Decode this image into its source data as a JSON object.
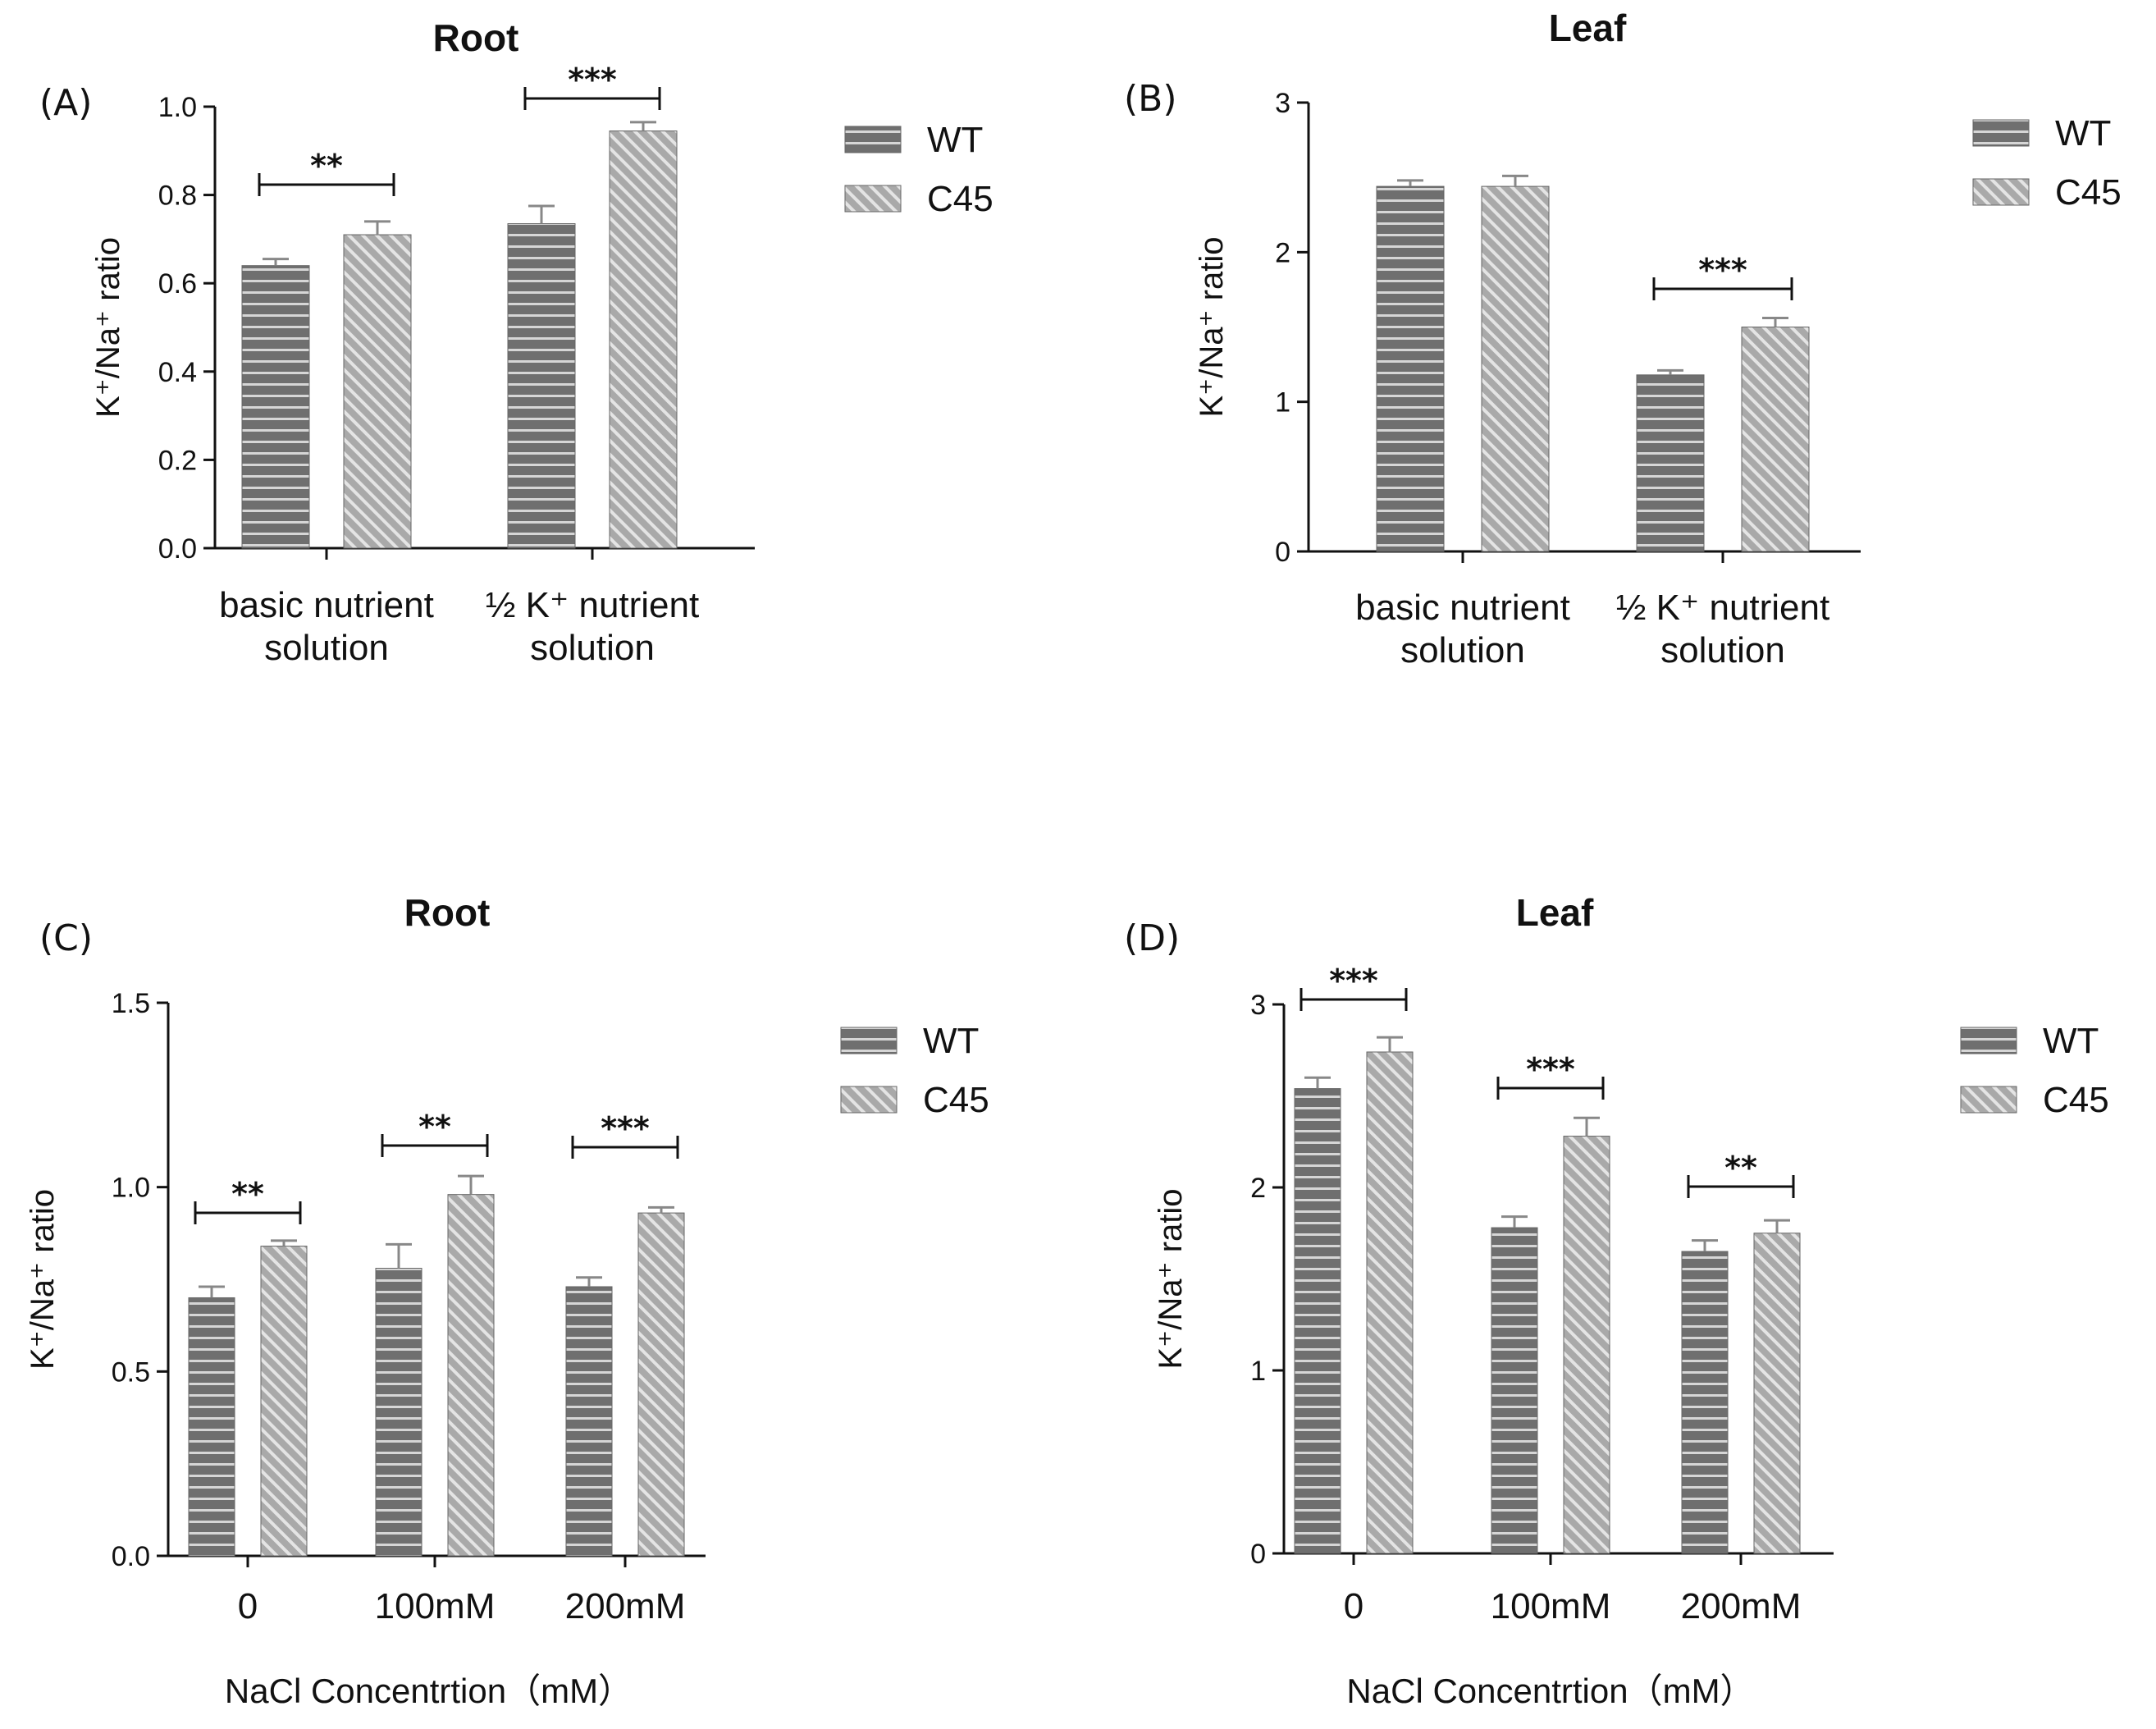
{
  "chart_data": [
    {
      "panel": "(A)",
      "type": "bar",
      "title": "Root",
      "ylabel": "K⁺/Na⁺ ratio",
      "xlabel": "",
      "ylim": [
        0,
        1.0
      ],
      "yticks": [
        "0.0",
        "0.2",
        "0.4",
        "0.6",
        "0.8",
        "1.0"
      ],
      "categories": [
        [
          "basic nutrient",
          "solution"
        ],
        [
          "½ K⁺ nutrient",
          "solution"
        ]
      ],
      "series": [
        {
          "name": "WT",
          "values": [
            0.64,
            0.735
          ],
          "errors": [
            0.015,
            0.04
          ]
        },
        {
          "name": "C45",
          "values": [
            0.71,
            0.945
          ],
          "errors": [
            0.03,
            0.02
          ]
        }
      ],
      "significance": [
        "**",
        "***"
      ],
      "legend": "top-right"
    },
    {
      "panel": "(B)",
      "type": "bar",
      "title": "Leaf",
      "ylabel": "K⁺/Na⁺ ratio",
      "xlabel": "",
      "ylim": [
        0,
        3
      ],
      "yticks": [
        "0",
        "1",
        "2",
        "3"
      ],
      "categories": [
        [
          "basic nutrient",
          "solution"
        ],
        [
          "½ K⁺ nutrient",
          "solution"
        ]
      ],
      "series": [
        {
          "name": "WT",
          "values": [
            2.44,
            1.18
          ],
          "errors": [
            0.04,
            0.03
          ]
        },
        {
          "name": "C45",
          "values": [
            2.44,
            1.5
          ],
          "errors": [
            0.07,
            0.06
          ]
        }
      ],
      "significance": [
        "",
        "***"
      ],
      "legend": "top-right"
    },
    {
      "panel": "(C)",
      "type": "bar",
      "title": "Root",
      "ylabel": "K⁺/Na⁺ ratio",
      "xlabel": "NaCl Concentrtion（mM）",
      "ylim": [
        0,
        1.5
      ],
      "yticks": [
        "0.0",
        "0.5",
        "1.0",
        "1.5"
      ],
      "categories": [
        [
          "0"
        ],
        [
          "100mM"
        ],
        [
          "200mM"
        ]
      ],
      "series": [
        {
          "name": "WT",
          "values": [
            0.7,
            0.78,
            0.73
          ],
          "errors": [
            0.03,
            0.065,
            0.025
          ]
        },
        {
          "name": "C45",
          "values": [
            0.84,
            0.98,
            0.93
          ],
          "errors": [
            0.015,
            0.05,
            0.015
          ]
        }
      ],
      "significance": [
        "**",
        "**",
        "***"
      ],
      "legend": "top-right"
    },
    {
      "panel": "(D)",
      "type": "bar",
      "title": "Leaf",
      "ylabel": "K⁺/Na⁺ ratio",
      "xlabel": "NaCl Concentrtion（mM）",
      "ylim": [
        0,
        3
      ],
      "yticks": [
        "0",
        "1",
        "2",
        "3"
      ],
      "categories": [
        [
          "0"
        ],
        [
          "100mM"
        ],
        [
          "200mM"
        ]
      ],
      "series": [
        {
          "name": "WT",
          "values": [
            2.54,
            1.78,
            1.65
          ],
          "errors": [
            0.06,
            0.06,
            0.06
          ]
        },
        {
          "name": "C45",
          "values": [
            2.74,
            2.28,
            1.75
          ],
          "errors": [
            0.08,
            0.1,
            0.07
          ]
        }
      ],
      "significance": [
        "***",
        "***",
        "**"
      ],
      "legend": "top-right"
    }
  ],
  "colors": {
    "wt_fill": "#6f6f6f",
    "wt_stripe": "#d6d6d6",
    "c45_fill": "#a9a9a9",
    "c45_stripe": "#e4e4e4",
    "axis": "#111111",
    "error": "#888888"
  }
}
